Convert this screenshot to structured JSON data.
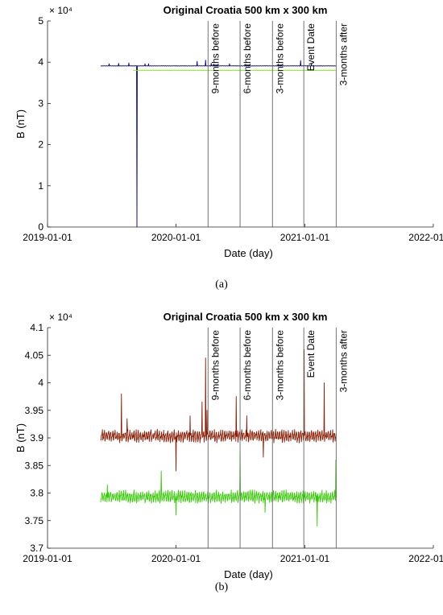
{
  "captions": [
    "(a)",
    "(b)"
  ],
  "chart_data": [
    {
      "type": "line",
      "title": "Original Croatia 500 km x 300 km",
      "xlabel": "Date (day)",
      "ylabel": "B (nT)",
      "exponent_label": "× 10⁴",
      "ylim": [
        0,
        5
      ],
      "yticks": [
        0,
        1,
        2,
        3,
        4,
        5
      ],
      "ytick_labels": [
        "0",
        "1",
        "2",
        "3",
        "4",
        "5"
      ],
      "xlim": [
        "2019-01-01",
        "2022-01-01"
      ],
      "xtick_labels": [
        "2019-01-01",
        "2020-01-01",
        "2021-01-01",
        "2022-01-01"
      ],
      "grid": false,
      "events": [
        {
          "label": "9-months before",
          "date": "2020-04-01"
        },
        {
          "label": "6-months before",
          "date": "2020-07-01"
        },
        {
          "label": "3-months before",
          "date": "2020-10-01"
        },
        {
          "label": "Event Date",
          "date": "2020-12-29"
        },
        {
          "label": "3-months after",
          "date": "2021-03-31"
        }
      ],
      "series": [
        {
          "color": "#00008b",
          "x_start": "2019-06-01",
          "x_end": "2021-03-31",
          "base": 3.91,
          "spikes": [
            [
              "2019-06-25",
              3.96
            ],
            [
              "2019-07-22",
              3.97
            ],
            [
              "2019-08-20",
              3.98
            ],
            [
              "2019-09-12",
              0.0
            ],
            [
              "2019-10-05",
              3.96
            ],
            [
              "2019-10-15",
              3.96
            ],
            [
              "2020-03-01",
              4.02
            ],
            [
              "2020-03-25",
              4.05
            ],
            [
              "2020-04-10",
              3.97
            ],
            [
              "2020-06-01",
              3.96
            ],
            [
              "2020-12-20",
              4.04
            ],
            [
              "2021-01-20",
              3.96
            ]
          ]
        },
        {
          "color": "#7cfc00",
          "x_start": "2019-09-01",
          "x_end": "2021-03-31",
          "base": 3.8,
          "spikes": []
        }
      ]
    },
    {
      "type": "line",
      "title": "Original Croatia 500 km x 300 km",
      "xlabel": "Date (day)",
      "ylabel": "B (nT)",
      "exponent_label": "× 10⁴",
      "ylim": [
        3.7,
        4.1
      ],
      "yticks": [
        3.7,
        3.75,
        3.8,
        3.85,
        3.9,
        3.95,
        4.0,
        4.05,
        4.1
      ],
      "ytick_labels": [
        "3.7",
        "3.75",
        "3.8",
        "3.85",
        "3.9",
        "3.95",
        "4",
        "4.05",
        "4.1"
      ],
      "xlim": [
        "2019-01-01",
        "2022-01-01"
      ],
      "xtick_labels": [
        "2019-01-01",
        "2020-01-01",
        "2021-01-01",
        "2022-01-01"
      ],
      "grid": false,
      "events": [
        {
          "label": "9-months before",
          "date": "2020-04-01"
        },
        {
          "label": "6-months before",
          "date": "2020-07-01"
        },
        {
          "label": "3-months before",
          "date": "2020-10-01"
        },
        {
          "label": "Event Date",
          "date": "2020-12-29"
        },
        {
          "label": "3-months after",
          "date": "2021-03-31"
        }
      ],
      "series": [
        {
          "color": "#8b1a00",
          "x_start": "2019-06-01",
          "x_end": "2021-03-31",
          "base": 3.905,
          "amp": 0.01,
          "spikes": [
            [
              "2019-07-30",
              3.98
            ],
            [
              "2019-08-15",
              3.935
            ],
            [
              "2020-01-01",
              3.84
            ],
            [
              "2020-02-10",
              3.94
            ],
            [
              "2020-03-15",
              3.965
            ],
            [
              "2020-03-25",
              4.045
            ],
            [
              "2020-03-29",
              3.95
            ],
            [
              "2020-06-20",
              3.975
            ],
            [
              "2020-07-20",
              3.94
            ],
            [
              "2020-09-05",
              3.865
            ],
            [
              "2020-12-30",
              4.06
            ],
            [
              "2021-02-25",
              4.0
            ]
          ]
        },
        {
          "color": "#33cc00",
          "x_start": "2019-06-01",
          "x_end": "2021-03-31",
          "base": 3.795,
          "amp": 0.01,
          "spikes": [
            [
              "2019-06-20",
              3.815
            ],
            [
              "2019-11-20",
              3.84
            ],
            [
              "2020-01-01",
              3.76
            ],
            [
              "2020-07-01",
              3.875
            ],
            [
              "2020-09-10",
              3.765
            ],
            [
              "2021-02-05",
              3.74
            ],
            [
              "2021-03-30",
              3.86
            ]
          ]
        }
      ]
    }
  ]
}
